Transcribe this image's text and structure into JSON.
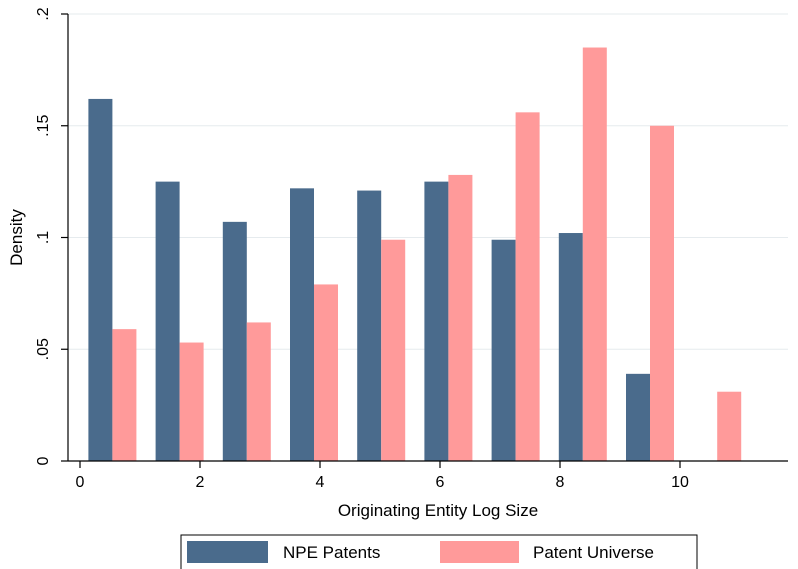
{
  "chart_data": {
    "type": "bar",
    "xlabel": "Originating Entity Log Size",
    "ylabel": "Density",
    "xlim": [
      -0.2,
      11.8
    ],
    "ylim": [
      0,
      0.2
    ],
    "xticks": [
      0,
      2,
      4,
      6,
      8,
      10
    ],
    "yticks": [
      0,
      0.05,
      0.1,
      0.15,
      0.2
    ],
    "ytick_labels": [
      "0",
      ".05",
      ".1",
      ".15",
      ".2"
    ],
    "grid": "horizontal",
    "legend_placement": "bottom",
    "bin_starts": [
      0.14,
      1.26,
      2.38,
      3.5,
      4.62,
      5.74,
      6.86,
      7.98,
      9.1,
      10.22
    ],
    "bar_width": 0.4,
    "series": [
      {
        "name": "NPE Patents",
        "color": "#4a6b8c",
        "values": [
          0.162,
          0.125,
          0.107,
          0.122,
          0.121,
          0.125,
          0.099,
          0.102,
          0.039,
          0
        ]
      },
      {
        "name": "Patent Universe",
        "color": "#ff9a9a",
        "values": [
          0.059,
          0.053,
          0.062,
          0.079,
          0.099,
          0.128,
          0.156,
          0.185,
          0.15,
          0.031
        ]
      }
    ]
  }
}
